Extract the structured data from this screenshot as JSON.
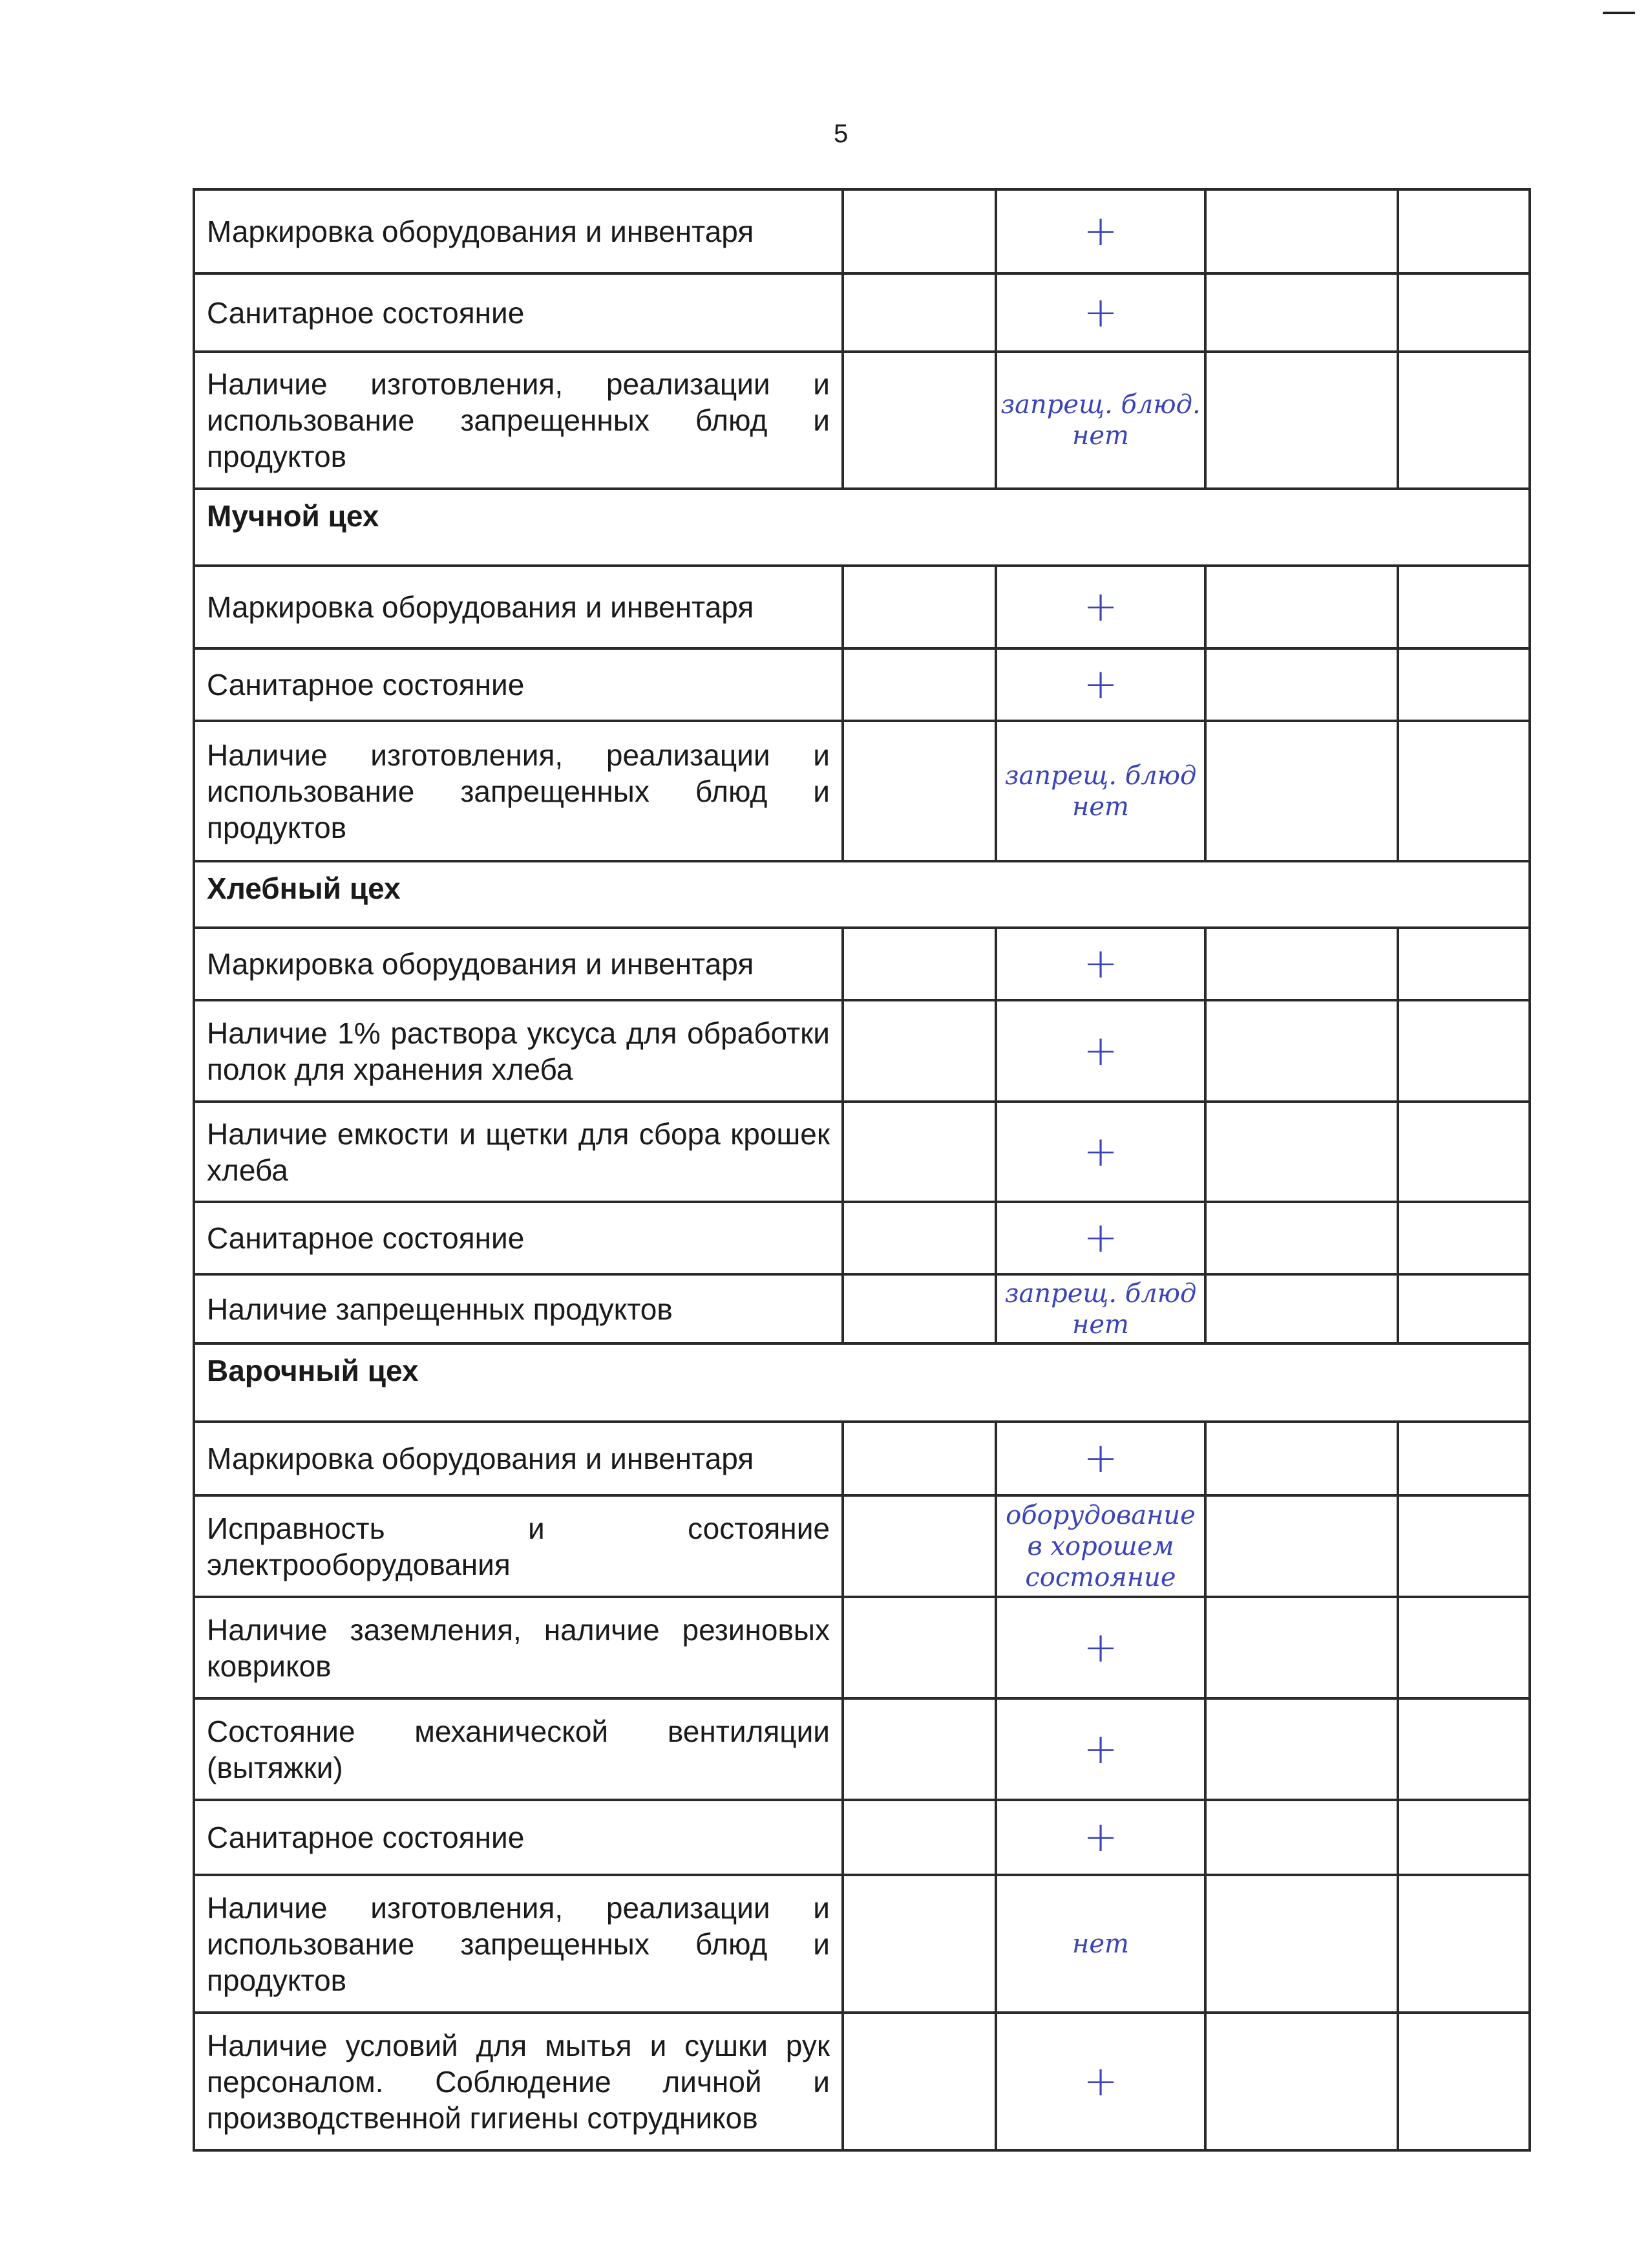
{
  "page_number": "5",
  "rows": [
    {
      "type": "item",
      "text": "Маркировка оборудования и инвентаря",
      "mark": "+"
    },
    {
      "type": "item",
      "text": "Санитарное состояние",
      "mark": "+"
    },
    {
      "type": "item",
      "text": "Наличие изготовления, реализации и использование запрещенных блюд и продуктов",
      "mark": "запрещ. блюд. нет"
    },
    {
      "type": "section",
      "text": "Мучной цех"
    },
    {
      "type": "item",
      "text": "Маркировка оборудования и инвентаря",
      "mark": "+"
    },
    {
      "type": "item",
      "text": "Санитарное состояние",
      "mark": "+"
    },
    {
      "type": "item",
      "text": "Наличие изготовления, реализации и использование запрещенных блюд и продуктов",
      "mark": "запрещ. блюд нет"
    },
    {
      "type": "section",
      "text": "Хлебный цех"
    },
    {
      "type": "item",
      "text": "Маркировка оборудования и инвентаря",
      "mark": "+"
    },
    {
      "type": "item",
      "text": "Наличие 1% раствора уксуса для обработки полок для хранения хлеба",
      "mark": "+"
    },
    {
      "type": "item",
      "text": "Наличие емкости и щетки для сбора крошек хлеба",
      "mark": "+"
    },
    {
      "type": "item",
      "text": "Санитарное состояние",
      "mark": "+"
    },
    {
      "type": "item",
      "text": "Наличие запрещенных продуктов",
      "mark": "запрещ. блюд нет"
    },
    {
      "type": "section",
      "text": "Варочный цех"
    },
    {
      "type": "item",
      "text": "Маркировка оборудования и инвентаря",
      "mark": "+"
    },
    {
      "type": "item",
      "text": "Исправность и состояние электрооборудования",
      "mark": "оборудование в хорошем состояние"
    },
    {
      "type": "item",
      "text": "Наличие заземления, наличие резиновых ковриков",
      "mark": "+"
    },
    {
      "type": "item",
      "text": "Состояние механической вентиляции (вытяжки)",
      "mark": "+"
    },
    {
      "type": "item",
      "text": "Санитарное состояние",
      "mark": "+"
    },
    {
      "type": "item",
      "text": "Наличие изготовления, реализации и использование запрещенных блюд и продуктов",
      "mark": "нет"
    },
    {
      "type": "item",
      "text": "Наличие условий для мытья и сушки рук персоналом. Соблюдение личной и производственной гигиены сотрудников",
      "mark": "+"
    }
  ],
  "colors": {
    "handwriting_ink": "#3a44b8",
    "border": "#2a2a2a"
  }
}
